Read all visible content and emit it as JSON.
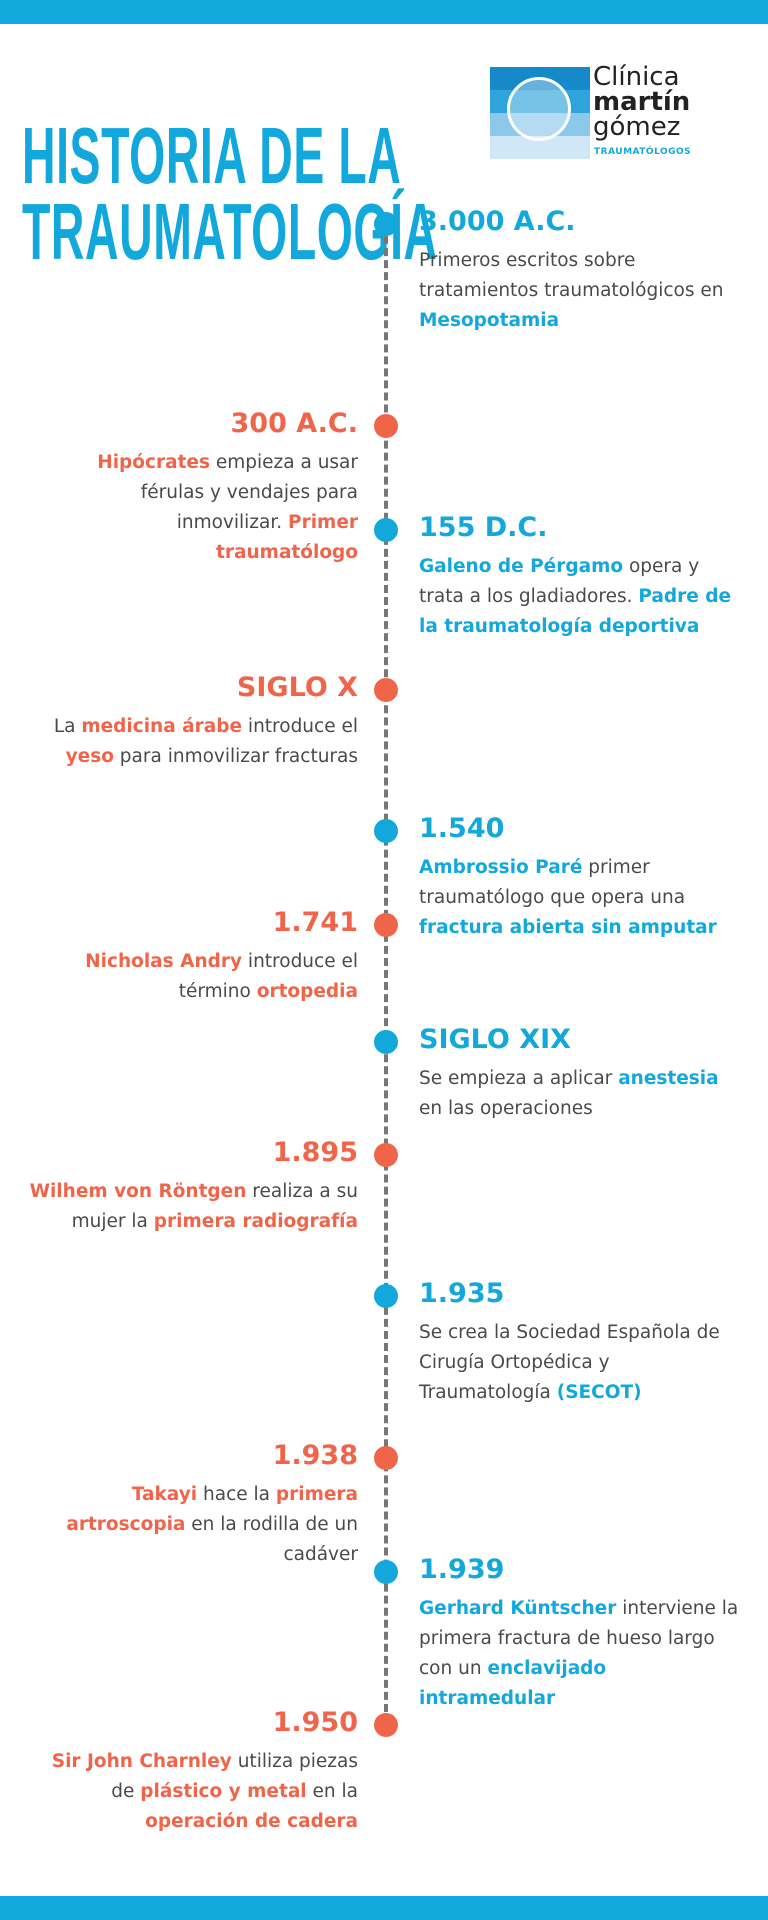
{
  "colors": {
    "blue": "#12a8dc",
    "red": "#f0654a",
    "text": "#4a4a4a"
  },
  "title": {
    "line1": "HISTORIA DE LA",
    "line2": "TRAUMATOLOGÍA"
  },
  "logo": {
    "line1": "Clínica",
    "line2": "martín",
    "line3": "gómez",
    "sub": "TRAUMATÓLOGOS"
  },
  "events": [
    {
      "side": "right",
      "color": "blue",
      "year": "3.000 A.C.",
      "lines": [
        [
          {
            "t": "Primeros escritos sobre"
          }
        ],
        [
          {
            "t": "tratamientos traumatológicos en"
          }
        ],
        [
          {
            "t": "Mesopotamia",
            "b": true
          }
        ]
      ]
    },
    {
      "side": "left",
      "color": "red",
      "year": "300 A.C.",
      "lines": [
        [
          {
            "t": "Hipócrates",
            "b": true
          },
          {
            "t": " empieza a usar"
          }
        ],
        [
          {
            "t": "férulas y vendajes para"
          }
        ],
        [
          {
            "t": "inmovilizar. "
          },
          {
            "t": "Primer",
            "b": true
          }
        ],
        [
          {
            "t": "traumatólogo",
            "b": true
          }
        ]
      ]
    },
    {
      "side": "right",
      "color": "blue",
      "year": "155 D.C.",
      "lines": [
        [
          {
            "t": "Galeno de Pérgamo",
            "b": true
          },
          {
            "t": " opera y"
          }
        ],
        [
          {
            "t": "trata a los gladiadores. "
          },
          {
            "t": "Padre de",
            "b": true
          }
        ],
        [
          {
            "t": "la traumatología deportiva",
            "b": true
          }
        ]
      ]
    },
    {
      "side": "left",
      "color": "red",
      "year": "SIGLO X",
      "lines": [
        [
          {
            "t": "La "
          },
          {
            "t": "medicina árabe",
            "b": true
          },
          {
            "t": " introduce el"
          }
        ],
        [
          {
            "t": "yeso",
            "b": true
          },
          {
            "t": " para inmovilizar fracturas"
          }
        ]
      ]
    },
    {
      "side": "right",
      "color": "blue",
      "year": "1.540",
      "lines": [
        [
          {
            "t": "Ambrossio Paré",
            "b": true
          },
          {
            "t": " primer"
          }
        ],
        [
          {
            "t": "traumatólogo que opera una"
          }
        ],
        [
          {
            "t": "fractura abierta sin amputar",
            "b": true
          }
        ]
      ]
    },
    {
      "side": "left",
      "color": "red",
      "year": "1.741",
      "lines": [
        [
          {
            "t": "Nicholas Andry",
            "b": true
          },
          {
            "t": " introduce el"
          }
        ],
        [
          {
            "t": "término "
          },
          {
            "t": "ortopedia",
            "b": true
          }
        ]
      ]
    },
    {
      "side": "right",
      "color": "blue",
      "year": "SIGLO XIX",
      "lines": [
        [
          {
            "t": "Se empieza a aplicar "
          },
          {
            "t": "anestesia",
            "b": true
          }
        ],
        [
          {
            "t": "en las operaciones"
          }
        ]
      ]
    },
    {
      "side": "left",
      "color": "red",
      "year": "1.895",
      "lines": [
        [
          {
            "t": "Wilhem von Röntgen",
            "b": true
          },
          {
            "t": " realiza a su"
          }
        ],
        [
          {
            "t": "mujer la "
          },
          {
            "t": "primera radiografía",
            "b": true
          }
        ]
      ]
    },
    {
      "side": "right",
      "color": "blue",
      "year": "1.935",
      "lines": [
        [
          {
            "t": "Se crea la Sociedad Española de"
          }
        ],
        [
          {
            "t": "Cirugía Ortopédica y"
          }
        ],
        [
          {
            "t": "Traumatología "
          },
          {
            "t": "(SECOT)",
            "b": true
          }
        ]
      ]
    },
    {
      "side": "left",
      "color": "red",
      "year": "1.938",
      "lines": [
        [
          {
            "t": "Takayi",
            "b": true
          },
          {
            "t": " hace la "
          },
          {
            "t": "primera",
            "b": true
          }
        ],
        [
          {
            "t": "artroscopia",
            "b": true
          },
          {
            "t": " en la rodilla de un"
          }
        ],
        [
          {
            "t": "cadáver"
          }
        ]
      ]
    },
    {
      "side": "right",
      "color": "blue",
      "year": "1.939",
      "lines": [
        [
          {
            "t": "Gerhard Küntscher",
            "b": true
          },
          {
            "t": " interviene la"
          }
        ],
        [
          {
            "t": "primera fractura de hueso largo"
          }
        ],
        [
          {
            "t": "con un "
          },
          {
            "t": "enclavijado",
            "b": true
          }
        ],
        [
          {
            "t": "intramedular",
            "b": true
          }
        ]
      ]
    },
    {
      "side": "left",
      "color": "red",
      "year": "1.950",
      "lines": [
        [
          {
            "t": "Sir John Charnley",
            "b": true
          },
          {
            "t": " utiliza piezas"
          }
        ],
        [
          {
            "t": "de "
          },
          {
            "t": "plástico y metal",
            "b": true
          },
          {
            "t": " en la"
          }
        ],
        [
          {
            "t": "operación de cadera",
            "b": true
          }
        ]
      ]
    }
  ]
}
